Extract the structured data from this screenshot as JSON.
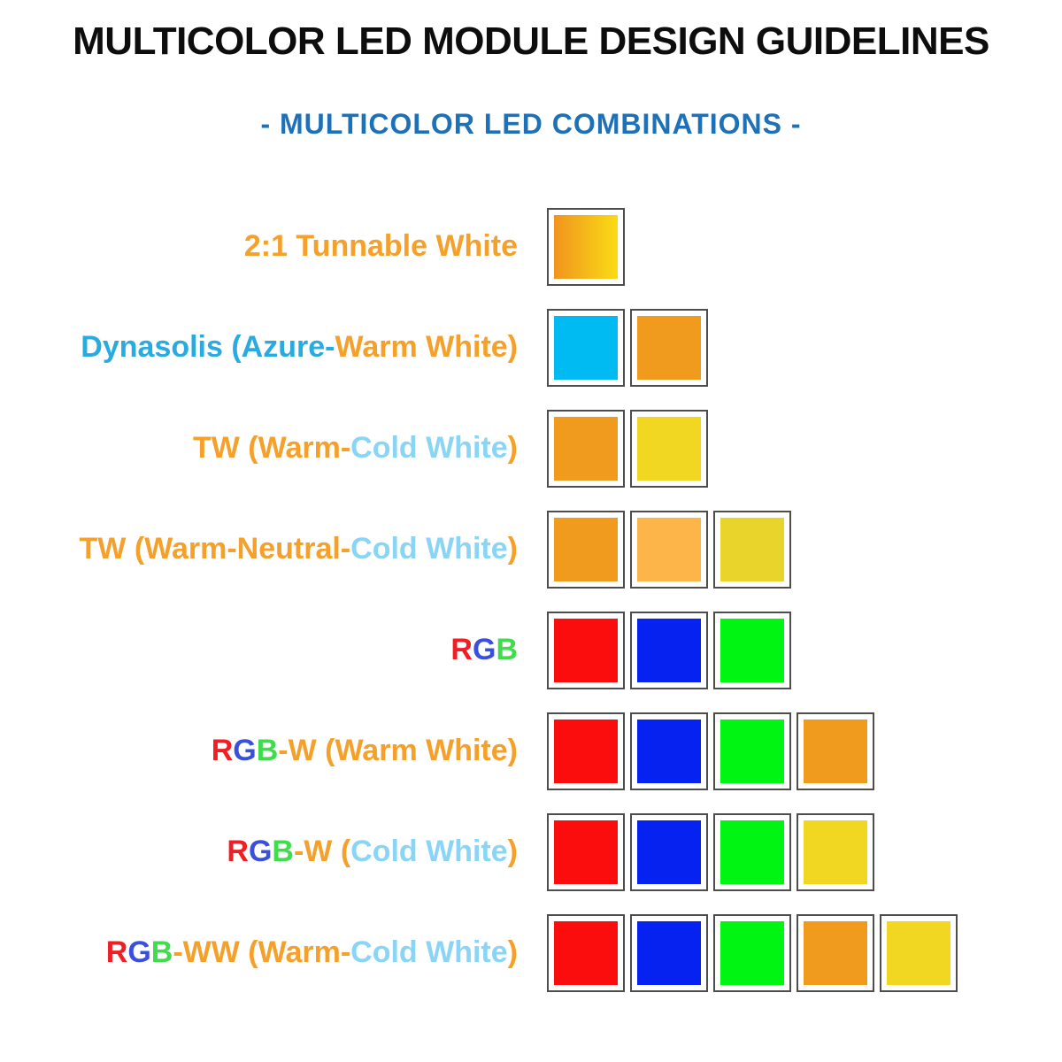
{
  "title": "MULTICOLOR LED MODULE DESIGN GUIDELINES",
  "subtitle": "- MULTICOLOR LED COMBINATIONS -",
  "colors": {
    "title_text": "#0d0d0d",
    "subtitle_text": "#1d71b8",
    "orange_text": "#f4a02a",
    "azure_text": "#29abe2",
    "lightblue_text": "#8ad4f5",
    "red_text": "#f01f26",
    "blue_text": "#3a50dd",
    "green_text": "#3fdd4b",
    "swatch_border": "#4d4d4d",
    "sw_red": "#fc0d0d",
    "sw_blue": "#0522f0",
    "sw_green": "#00f513",
    "sw_cyan": "#00bbf2",
    "sw_warm_orange": "#f09b1e",
    "sw_cold_yellow": "#f1d722",
    "sw_neutral_orange": "#fdb449",
    "sw_deep_yellow": "#e9d42b",
    "grad_warm": "#f0941e",
    "grad_cold": "#f9dc14"
  },
  "rows": [
    {
      "id": "tunable-white-2-1",
      "segments": [
        {
          "text": "2:1 Tunnable White",
          "color": "orange_text"
        }
      ],
      "swatches": [
        {
          "name": "swatch-tunable-gradient",
          "gradient": [
            "grad_warm",
            "grad_cold"
          ]
        }
      ]
    },
    {
      "id": "dynasolis",
      "segments": [
        {
          "text": "Dynasolis (Azure-",
          "color": "azure_text"
        },
        {
          "text": "Warm White)",
          "color": "orange_text"
        }
      ],
      "swatches": [
        {
          "name": "swatch-azure",
          "fill": "sw_cyan"
        },
        {
          "name": "swatch-warm-white",
          "fill": "sw_warm_orange"
        }
      ]
    },
    {
      "id": "tw-warm-cold",
      "segments": [
        {
          "text": "TW (Warm-",
          "color": "orange_text"
        },
        {
          "text": "Cold White",
          "color": "lightblue_text"
        },
        {
          "text": ")",
          "color": "orange_text"
        }
      ],
      "swatches": [
        {
          "name": "swatch-warm-white",
          "fill": "sw_warm_orange"
        },
        {
          "name": "swatch-cold-white",
          "fill": "sw_cold_yellow"
        }
      ]
    },
    {
      "id": "tw-warm-neutral-cold",
      "segments": [
        {
          "text": "TW (Warm-Neutral-",
          "color": "orange_text"
        },
        {
          "text": "Cold White",
          "color": "lightblue_text"
        },
        {
          "text": ")",
          "color": "orange_text"
        }
      ],
      "swatches": [
        {
          "name": "swatch-warm-white",
          "fill": "sw_warm_orange"
        },
        {
          "name": "swatch-neutral-white",
          "fill": "sw_neutral_orange"
        },
        {
          "name": "swatch-cold-white",
          "fill": "sw_deep_yellow"
        }
      ]
    },
    {
      "id": "rgb",
      "segments": [
        {
          "text": "R",
          "color": "red_text"
        },
        {
          "text": "G",
          "color": "blue_text"
        },
        {
          "text": "B",
          "color": "green_text"
        }
      ],
      "swatches": [
        {
          "name": "swatch-red",
          "fill": "sw_red"
        },
        {
          "name": "swatch-blue",
          "fill": "sw_blue"
        },
        {
          "name": "swatch-green",
          "fill": "sw_green"
        }
      ]
    },
    {
      "id": "rgb-w-warm",
      "segments": [
        {
          "text": "R",
          "color": "red_text"
        },
        {
          "text": "G",
          "color": "blue_text"
        },
        {
          "text": "B",
          "color": "green_text"
        },
        {
          "text": "-W (Warm White)",
          "color": "orange_text"
        }
      ],
      "swatches": [
        {
          "name": "swatch-red",
          "fill": "sw_red"
        },
        {
          "name": "swatch-blue",
          "fill": "sw_blue"
        },
        {
          "name": "swatch-green",
          "fill": "sw_green"
        },
        {
          "name": "swatch-warm-white",
          "fill": "sw_warm_orange"
        }
      ]
    },
    {
      "id": "rgb-w-cold",
      "segments": [
        {
          "text": "R",
          "color": "red_text"
        },
        {
          "text": "G",
          "color": "blue_text"
        },
        {
          "text": "B",
          "color": "green_text"
        },
        {
          "text": "-W (",
          "color": "orange_text"
        },
        {
          "text": "Cold White",
          "color": "lightblue_text"
        },
        {
          "text": ")",
          "color": "orange_text"
        }
      ],
      "swatches": [
        {
          "name": "swatch-red",
          "fill": "sw_red"
        },
        {
          "name": "swatch-blue",
          "fill": "sw_blue"
        },
        {
          "name": "swatch-green",
          "fill": "sw_green"
        },
        {
          "name": "swatch-cold-white",
          "fill": "sw_cold_yellow"
        }
      ]
    },
    {
      "id": "rgb-ww-warm-cold",
      "segments": [
        {
          "text": "R",
          "color": "red_text"
        },
        {
          "text": "G",
          "color": "blue_text"
        },
        {
          "text": "B",
          "color": "green_text"
        },
        {
          "text": "-WW (Warm-",
          "color": "orange_text"
        },
        {
          "text": "Cold White",
          "color": "lightblue_text"
        },
        {
          "text": ")",
          "color": "orange_text"
        }
      ],
      "swatches": [
        {
          "name": "swatch-red",
          "fill": "sw_red"
        },
        {
          "name": "swatch-blue",
          "fill": "sw_blue"
        },
        {
          "name": "swatch-green",
          "fill": "sw_green"
        },
        {
          "name": "swatch-warm-white",
          "fill": "sw_warm_orange"
        },
        {
          "name": "swatch-cold-white",
          "fill": "sw_cold_yellow"
        }
      ]
    }
  ]
}
